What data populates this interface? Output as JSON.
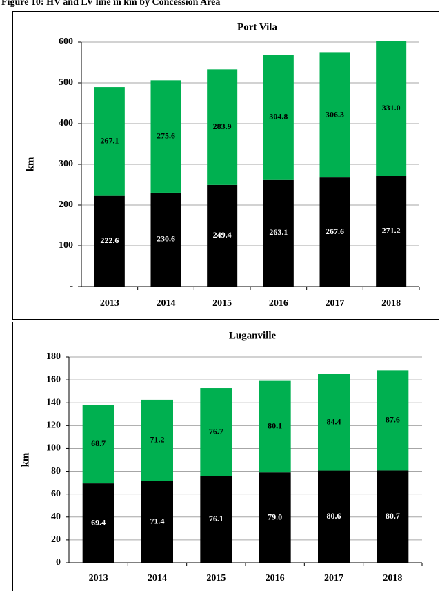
{
  "title": "Figure 10: HV and LV line in km by Concession Area",
  "chart_data": [
    {
      "type": "stacked-bar",
      "title": "Port Vila",
      "y_label": "km",
      "categories": [
        "2013",
        "2014",
        "2015",
        "2016",
        "2017",
        "2018"
      ],
      "series": [
        {
          "color": "#000000",
          "values": [
            222.6,
            230.6,
            249.4,
            263.1,
            267.6,
            271.2
          ]
        },
        {
          "color": "#00b050",
          "values": [
            267.1,
            275.6,
            283.9,
            304.8,
            306.3,
            331.0
          ],
          "value_labels": [
            "267.1",
            "275.6",
            "283.9",
            "304.8",
            "306.3",
            "331.0"
          ]
        }
      ],
      "ylim": [
        0,
        600
      ],
      "yticks": [
        {
          "value": 0,
          "label": "-"
        },
        100,
        200,
        300,
        400,
        500,
        600
      ],
      "grid": true
    },
    {
      "type": "stacked-bar",
      "title": "Luganville",
      "y_label": "km",
      "categories": [
        "2013",
        "2014",
        "2015",
        "2016",
        "2017",
        "2018"
      ],
      "series": [
        {
          "color": "#000000",
          "values": [
            69.4,
            71.4,
            76.1,
            79.0,
            80.6,
            80.7
          ],
          "value_labels": [
            "69.4",
            "71.4",
            "76.1",
            "79.0",
            "80.6",
            "80.7"
          ]
        },
        {
          "color": "#00b050",
          "values": [
            68.7,
            71.2,
            76.7,
            80.1,
            84.4,
            87.6
          ]
        }
      ],
      "ylim": [
        0,
        180
      ],
      "yticks": [
        0,
        20,
        40,
        60,
        80,
        100,
        120,
        140,
        160,
        180
      ],
      "grid": true
    }
  ]
}
